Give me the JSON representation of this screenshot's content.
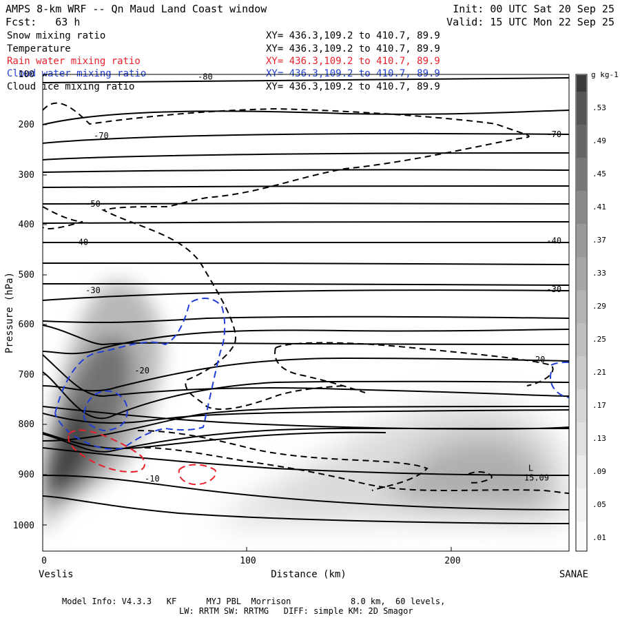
{
  "header": {
    "title": "AMPS 8-km WRF -- Qn Maud Land Coast window",
    "forecast": "Fcst:   63 h",
    "init": "Init: 00 UTC Sat 20 Sep 25",
    "valid": "Valid: 15 UTC Mon 22 Sep 25"
  },
  "legend": [
    {
      "label": "Snow mixing ratio",
      "xy": "XY= 436.3,109.2 to 410.7, 89.9",
      "color": "#000000"
    },
    {
      "label": "Temperature",
      "xy": "XY= 436.3,109.2 to 410.7, 89.9",
      "color": "#000000"
    },
    {
      "label": "Rain water mixing ratio",
      "xy": "XY= 436.3,109.2 to 410.7, 89.9",
      "color": "#e8202a"
    },
    {
      "label": "Cloud water mixing ratio",
      "xy": "XY= 436.3,109.2 to 410.7, 89.9",
      "color": "#1f3fd8"
    },
    {
      "label": "Cloud ice mixing ratio",
      "xy": "XY= 436.3,109.2 to 410.7, 89.9",
      "color": "#000000"
    }
  ],
  "footer": {
    "line1": "Model Info: V4.3.3   KF      MYJ PBL  Morrison            8.0 km,  60 levels,",
    "line2": "LW: RRTM SW: RRTMG   DIFF: simple KM: 2D Smagor"
  },
  "chart_data": {
    "type": "contour",
    "xlabel": "Distance (km)",
    "ylabel": "Pressure (hPa)",
    "xlim": [
      0,
      258
    ],
    "ylim": [
      100,
      1050
    ],
    "x_ticks": [
      0,
      100,
      200
    ],
    "y_ticks": [
      100,
      200,
      300,
      400,
      500,
      600,
      700,
      800,
      900,
      1000
    ],
    "endpoint_left": "Veslis",
    "endpoint_right": "SANAE",
    "colorbar": {
      "unit": "g kg-1",
      "labels": [
        ".53",
        ".49",
        ".45",
        ".41",
        ".37",
        ".33",
        ".29",
        ".25",
        ".21",
        ".17",
        ".13",
        ".09",
        ".05",
        ".01"
      ]
    },
    "temperature_labels": [
      {
        "text": "-80",
        "x": 76,
        "p": 109
      },
      {
        "text": "-70",
        "x": 25,
        "p": 227
      },
      {
        "text": "-70",
        "x": 247,
        "p": 224
      },
      {
        "text": "-50",
        "x": 21,
        "p": 363
      },
      {
        "text": "-40",
        "x": 15,
        "p": 440
      },
      {
        "text": "-40",
        "x": 247,
        "p": 437
      },
      {
        "text": "-30",
        "x": 21,
        "p": 536
      },
      {
        "text": "-30",
        "x": 247,
        "p": 534
      },
      {
        "text": "-20",
        "x": 45,
        "p": 697
      },
      {
        "text": "-20",
        "x": 239,
        "p": 675
      },
      {
        "text": "-10",
        "x": 50,
        "p": 913
      }
    ],
    "low_marker": {
      "symbol": "L",
      "value": "15.09",
      "x": 236,
      "p": 900
    }
  }
}
